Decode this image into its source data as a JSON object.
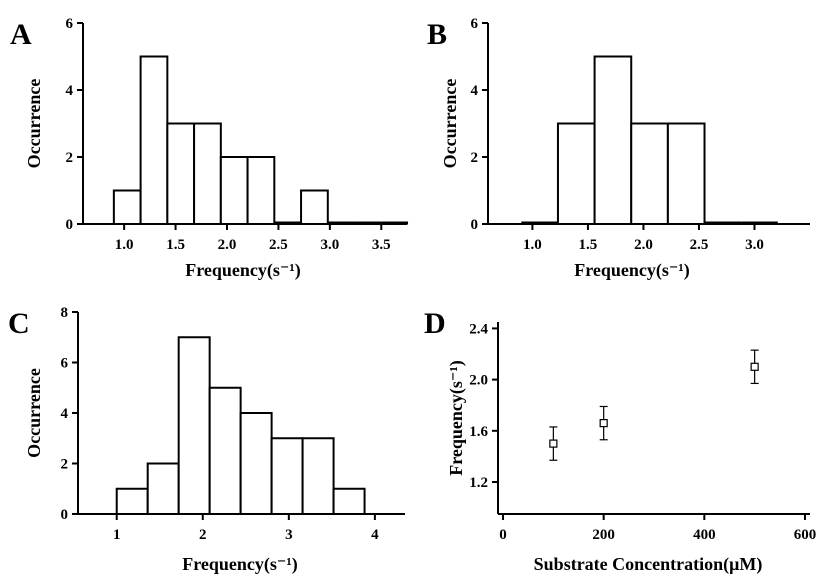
{
  "chart_data": [
    {
      "panel": "A",
      "type": "bar",
      "title": "",
      "xlabel": "Frequency(s⁻¹)",
      "ylabel": "Occurrence",
      "xlim": [
        0.6,
        3.75
      ],
      "ylim": [
        0,
        6
      ],
      "xticks": [
        "1.0",
        "1.5",
        "2.0",
        "2.5",
        "3.0",
        "3.5"
      ],
      "xtick_values": [
        1.0,
        1.5,
        2.0,
        2.5,
        3.0,
        3.5
      ],
      "yticks": [
        "0",
        "2",
        "4",
        "6"
      ],
      "ytick_values": [
        0,
        2,
        4,
        6
      ],
      "bin_edges": [
        0.9,
        1.16,
        1.42,
        1.68,
        1.94,
        2.2,
        2.46,
        2.72,
        2.98,
        3.24,
        3.5,
        3.76
      ],
      "values": [
        1,
        5,
        3,
        3,
        2,
        2,
        0,
        1,
        0,
        0,
        0
      ],
      "grid": false
    },
    {
      "panel": "B",
      "type": "bar",
      "title": "",
      "xlabel": "Frequency(s⁻¹)",
      "ylabel": "Occurrence",
      "xlim": [
        0.6,
        3.5
      ],
      "ylim": [
        0,
        6
      ],
      "xticks": [
        "1.0",
        "1.5",
        "2.0",
        "2.5",
        "3.0"
      ],
      "xtick_values": [
        1.0,
        1.5,
        2.0,
        2.5,
        3.0
      ],
      "yticks": [
        "0",
        "2",
        "4",
        "6"
      ],
      "ytick_values": [
        0,
        2,
        4,
        6
      ],
      "bin_edges": [
        0.9,
        1.23,
        1.56,
        1.89,
        2.22,
        2.55,
        2.88,
        3.21
      ],
      "values": [
        0,
        3,
        5,
        3,
        3,
        0,
        0
      ],
      "grid": false
    },
    {
      "panel": "C",
      "type": "bar",
      "title": "",
      "xlabel": "Frequency(s⁻¹)",
      "ylabel": "Occurrence",
      "xlim": [
        0.55,
        4.35
      ],
      "ylim": [
        0,
        8
      ],
      "xticks": [
        "1",
        "2",
        "3",
        "4"
      ],
      "xtick_values": [
        1,
        2,
        3,
        4
      ],
      "yticks": [
        "0",
        "2",
        "4",
        "6",
        "8"
      ],
      "ytick_values": [
        0,
        2,
        4,
        6,
        8
      ],
      "bin_edges": [
        1.0,
        1.36,
        1.72,
        2.08,
        2.44,
        2.8,
        3.16,
        3.52,
        3.88
      ],
      "values": [
        1,
        2,
        7,
        5,
        4,
        3,
        3,
        1
      ],
      "grid": false
    },
    {
      "panel": "D",
      "type": "scatter",
      "title": "",
      "xlabel": "Substrate Concentration(μM)",
      "ylabel": "Frequency(s⁻¹)",
      "xlim": [
        -10,
        610
      ],
      "ylim": [
        0.95,
        2.45
      ],
      "xticks": [
        "0",
        "200",
        "400",
        "600"
      ],
      "xtick_values": [
        0,
        200,
        400,
        600
      ],
      "yticks": [
        "1.2",
        "1.6",
        "2.0",
        "2.4"
      ],
      "ytick_values": [
        1.2,
        1.6,
        2.0,
        2.4
      ],
      "x": [
        100,
        200,
        500
      ],
      "y": [
        1.5,
        1.66,
        2.1
      ],
      "error": [
        0.13,
        0.13,
        0.13
      ],
      "marker": "open-square",
      "grid": false
    }
  ]
}
